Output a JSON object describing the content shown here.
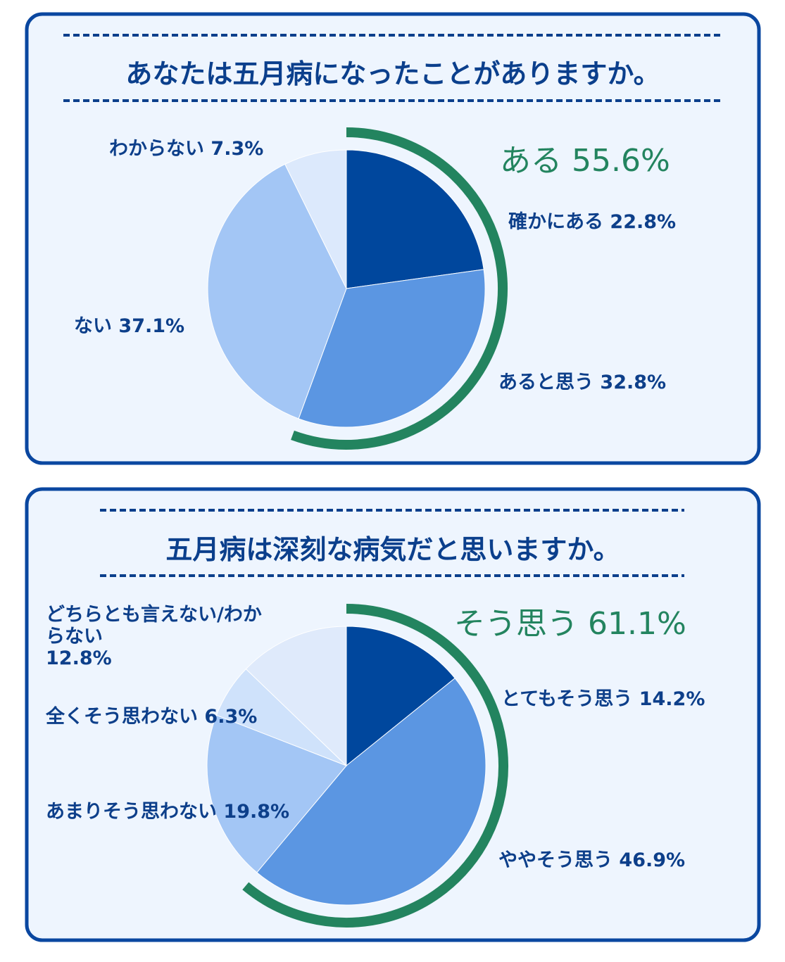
{
  "chart_data": [
    {
      "type": "pie",
      "title": "あなたは五月病になったことがありますか。",
      "labels": [
        "確かにある",
        "あると思う",
        "ない",
        "わからない"
      ],
      "values": [
        22.8,
        32.8,
        37.1,
        7.3
      ],
      "value_labels": [
        "22.8%",
        "32.8%",
        "37.1%",
        "7.3%"
      ],
      "colors": [
        "#00479d",
        "#5b96e2",
        "#a3c6f5",
        "#dce9fc"
      ],
      "highlight": {
        "label": "ある",
        "value": 55.6,
        "value_label": "55.6%",
        "color": "#23845f"
      }
    },
    {
      "type": "pie",
      "title": "五月病は深刻な病気だと思いますか。",
      "labels": [
        "とてもそう思う",
        "ややそう思う",
        "あまりそう思わない",
        "全くそう思わない",
        "どちらとも言えない/わからない"
      ],
      "values": [
        14.2,
        46.9,
        19.8,
        6.3,
        12.8
      ],
      "value_labels": [
        "14.2%",
        "46.9%",
        "19.8%",
        "6.3%",
        "12.8%"
      ],
      "colors": [
        "#00479d",
        "#5b96e2",
        "#a3c6f5",
        "#cfe2fb",
        "#dfeafb"
      ],
      "highlight": {
        "label": "そう思う",
        "value": 61.1,
        "value_label": "61.1%",
        "color": "#23845f"
      }
    }
  ]
}
